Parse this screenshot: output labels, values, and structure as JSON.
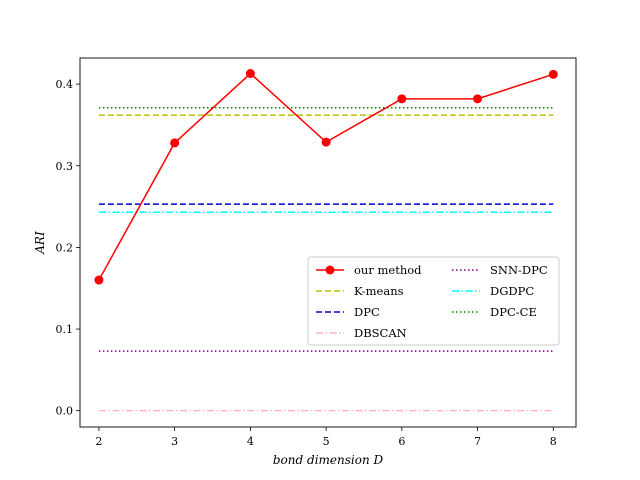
{
  "chart_data": {
    "type": "line",
    "xlabel": "bond dimension D",
    "ylabel": "ARI",
    "x": [
      2,
      3,
      4,
      5,
      6,
      7,
      8
    ],
    "xlim": [
      1.75,
      8.3
    ],
    "ylim": [
      -0.02,
      0.432
    ],
    "xticks": [
      "2",
      "3",
      "4",
      "5",
      "6",
      "7",
      "8"
    ],
    "yticks": [
      "0.0",
      "0.1",
      "0.2",
      "0.3",
      "0.4"
    ],
    "grid": false,
    "legend_position": "center-right",
    "legend_columns": 2,
    "series": [
      {
        "name": "our method",
        "color": "#ff0000",
        "style": "solid",
        "marker": "circle",
        "values": [
          0.16,
          0.328,
          0.413,
          0.329,
          0.382,
          0.382,
          0.412
        ]
      },
      {
        "name": "K-means",
        "color": "#bfbf00",
        "style": "dashed",
        "marker": "none",
        "values": [
          0.362,
          0.362,
          0.362,
          0.362,
          0.362,
          0.362,
          0.362
        ]
      },
      {
        "name": "DPC",
        "color": "#0000cc",
        "style": "dashed",
        "marker": "none",
        "values": [
          0.253,
          0.253,
          0.253,
          0.253,
          0.253,
          0.253,
          0.253
        ]
      },
      {
        "name": "DBSCAN",
        "color": "#ffb6c1",
        "style": "dashdot",
        "marker": "none",
        "values": [
          0.0,
          0.0,
          0.0,
          0.0,
          0.0,
          0.0,
          0.0
        ]
      },
      {
        "name": "SNN-DPC",
        "color": "#800080",
        "style": "dotted",
        "marker": "none",
        "values": [
          0.073,
          0.073,
          0.073,
          0.073,
          0.073,
          0.073,
          0.073
        ]
      },
      {
        "name": "DGDPC",
        "color": "#00ffff",
        "style": "dashdot",
        "marker": "none",
        "values": [
          0.243,
          0.243,
          0.243,
          0.243,
          0.243,
          0.243,
          0.243
        ]
      },
      {
        "name": "DPC-CE",
        "color": "#008000",
        "style": "dotted",
        "marker": "none",
        "values": [
          0.371,
          0.371,
          0.371,
          0.371,
          0.371,
          0.371,
          0.371
        ]
      }
    ]
  }
}
